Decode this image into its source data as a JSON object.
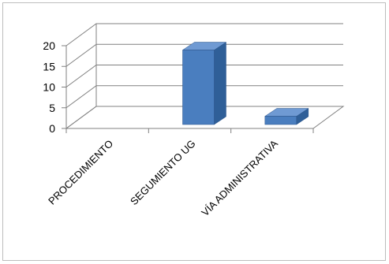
{
  "chart_data": {
    "type": "bar",
    "categories": [
      "PROCEDIMIENTO",
      "SEGUMIENTO UG",
      "VÍA ADMINISTRATIVA"
    ],
    "values": [
      0,
      18,
      2
    ],
    "title": "",
    "xlabel": "",
    "ylabel": "",
    "ylim": [
      0,
      20
    ],
    "yticks": [
      0,
      5,
      10,
      15,
      20
    ],
    "grid": true,
    "legend": "none",
    "colors": {
      "bar_front": "#4a7ebf",
      "bar_top": "#6f9ad3",
      "bar_side": "#2f5f98",
      "gridline": "#808080",
      "axis": "#808080"
    }
  }
}
